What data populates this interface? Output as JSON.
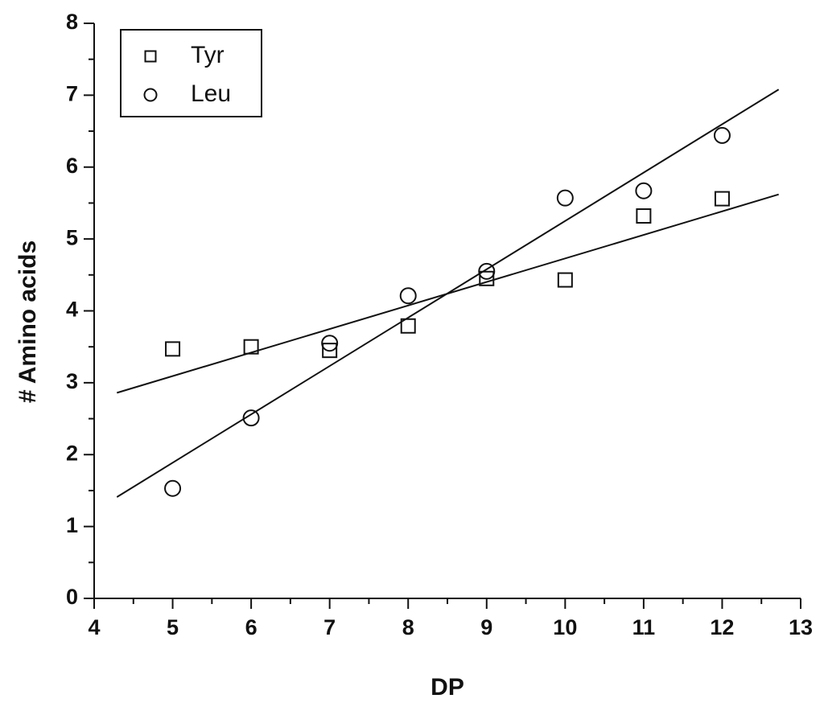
{
  "chart_data": {
    "type": "scatter",
    "x_label": "DP",
    "y_label": "# Amino acids",
    "xlim": [
      4,
      13
    ],
    "ylim": [
      0,
      8
    ],
    "xticks": [
      4,
      5,
      6,
      7,
      8,
      9,
      10,
      11,
      12,
      13
    ],
    "yticks": [
      0,
      1,
      2,
      3,
      4,
      5,
      6,
      7,
      8
    ],
    "xminorticks": [
      4.5,
      5.5,
      6.5,
      7.5,
      8.5,
      9.5,
      10.5,
      11.5,
      12.5
    ],
    "yminorticks": [
      0.5,
      1.5,
      2.5,
      3.5,
      4.5,
      5.5,
      6.5,
      7.5
    ],
    "legend": "upper left",
    "series": [
      {
        "name": "Tyr",
        "marker": "square",
        "color": "#111111",
        "x": [
          5,
          6,
          7,
          8,
          9,
          10,
          11,
          12
        ],
        "values": [
          3.47,
          3.5,
          3.45,
          3.79,
          4.45,
          4.43,
          5.32,
          5.56
        ],
        "fit_x": [
          4.29,
          12.72
        ],
        "fit_y": [
          2.86,
          5.62
        ]
      },
      {
        "name": "Leu",
        "marker": "circle",
        "color": "#111111",
        "x": [
          5,
          6,
          7,
          8,
          9,
          10,
          11,
          12
        ],
        "values": [
          1.53,
          2.51,
          3.55,
          4.21,
          4.55,
          5.57,
          5.67,
          6.44
        ],
        "fit_x": [
          4.29,
          12.72
        ],
        "fit_y": [
          1.41,
          7.08
        ]
      }
    ]
  }
}
